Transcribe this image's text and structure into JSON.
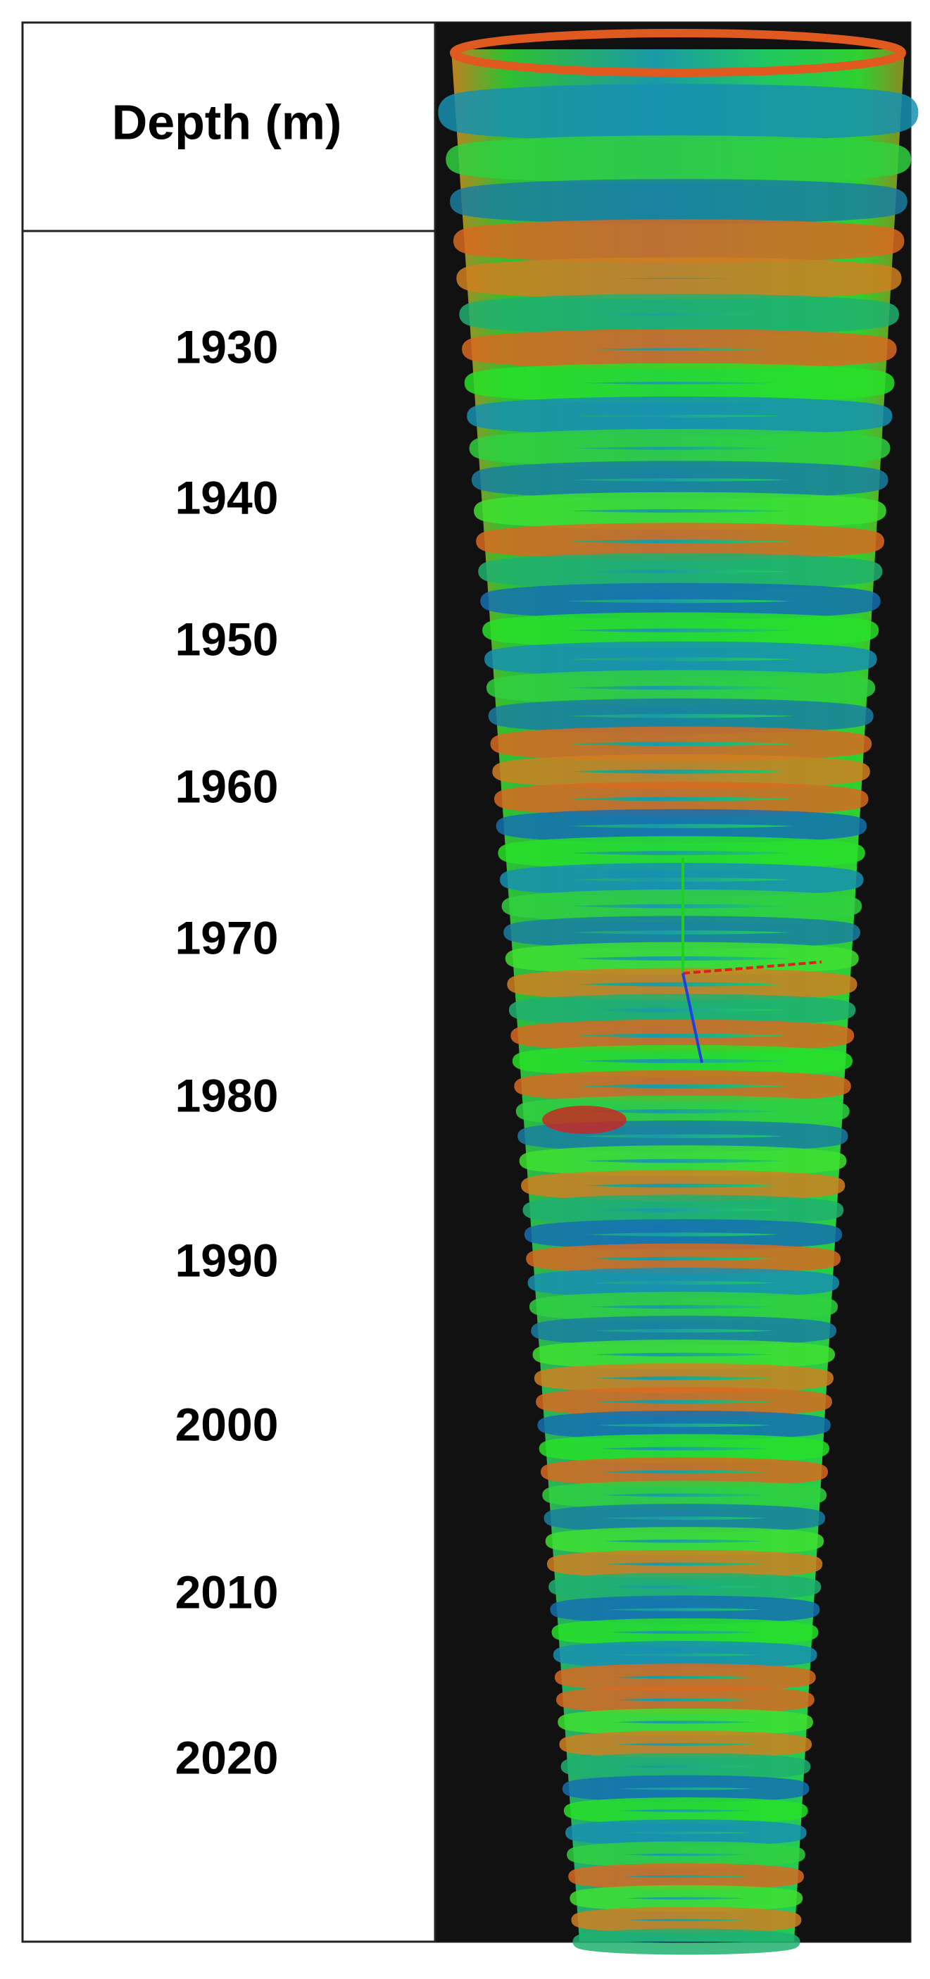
{
  "header": {
    "title": "Depth (m)"
  },
  "depth_labels": [
    1930,
    1940,
    1950,
    1960,
    1970,
    1980,
    1990,
    2000,
    2010,
    2020
  ]
}
